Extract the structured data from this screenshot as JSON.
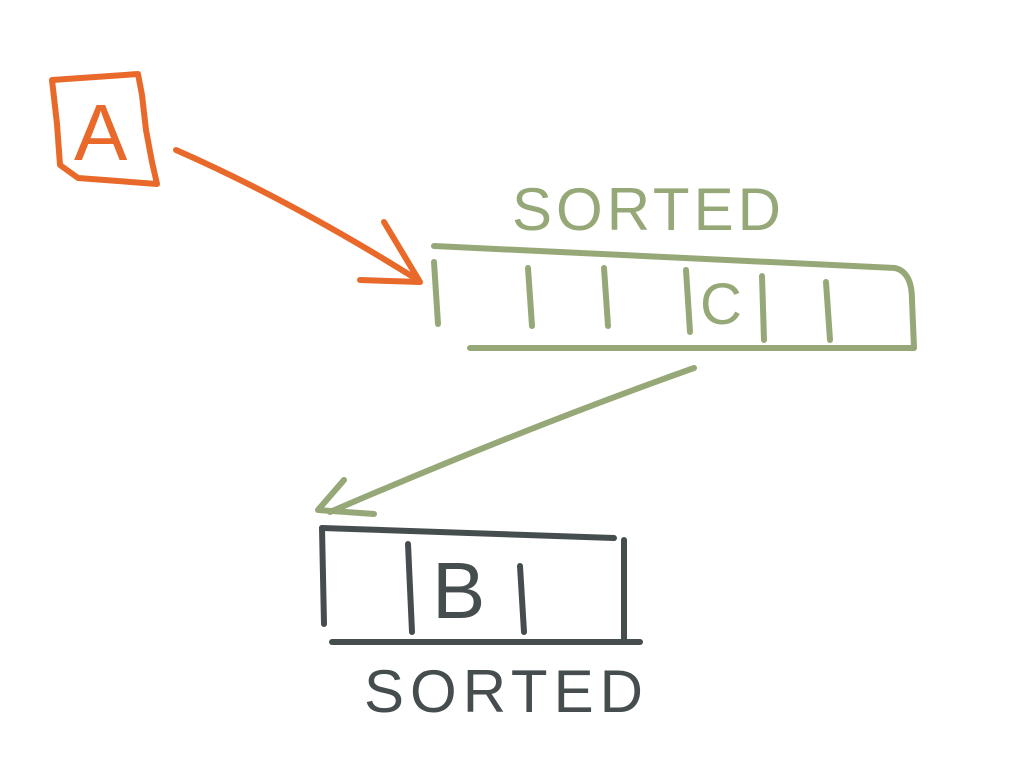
{
  "colors": {
    "input": "#e8692a",
    "sorted_mid": "#97a878",
    "sorted_out": "#464d4f",
    "background": "#ffffff"
  },
  "input_box": {
    "label": "A"
  },
  "middle_array": {
    "caption": "SORTED",
    "cell_label": "C"
  },
  "output_array": {
    "caption": "SORTED",
    "cell_label": "B"
  }
}
